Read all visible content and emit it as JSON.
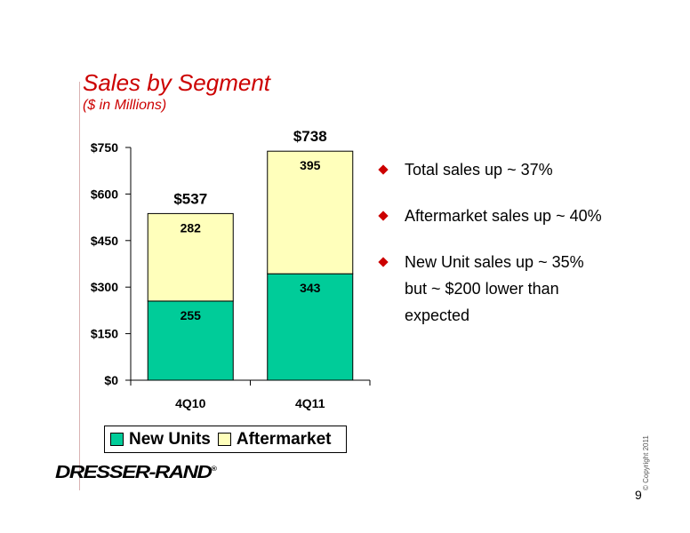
{
  "slide": {
    "title": "Sales by Segment",
    "subtitle": "($ in Millions)",
    "bullets": [
      {
        "lines": [
          "Total sales up ~ 37%"
        ]
      },
      {
        "lines": [
          "Aftermarket sales up ~ 40%"
        ]
      },
      {
        "lines": [
          "New Unit sales up ~ 35%",
          "but ~ $200 lower than",
          "expected"
        ]
      }
    ],
    "logo": "DRESSER-RAND",
    "logo_mark": "®",
    "copyright": "© Copyright 2011",
    "page_number": "9"
  },
  "chart_data": {
    "type": "bar",
    "stacked": true,
    "categories": [
      "4Q10",
      "4Q11"
    ],
    "series": [
      {
        "name": "New Units",
        "values": [
          255,
          343
        ],
        "labels": [
          "255",
          "343"
        ],
        "color": "#00cc99"
      },
      {
        "name": "Aftermarket",
        "values": [
          282,
          395
        ],
        "labels": [
          "282",
          "395"
        ],
        "color": "#ffffbb"
      }
    ],
    "totals": [
      "$537",
      "$738"
    ],
    "yticks": [
      0,
      150,
      300,
      450,
      600,
      750
    ],
    "ytick_labels": [
      "$0",
      "$150",
      "$300",
      "$450",
      "$600",
      "$750"
    ],
    "ylim": [
      0,
      750
    ],
    "legend_position": "bottom",
    "grid": false
  }
}
